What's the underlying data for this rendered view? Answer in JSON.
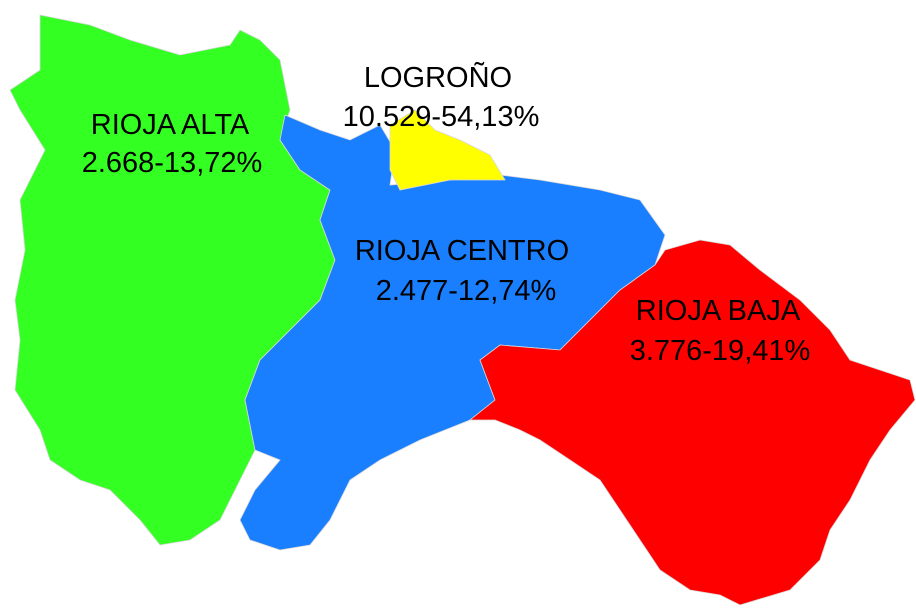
{
  "regions": [
    {
      "name": "RIOJA ALTA",
      "label": "2.668-13,72%",
      "color": "#33ff22"
    },
    {
      "name": "RIOJA CENTRO",
      "label": "2.477-12,74%",
      "color": "#1a7fff"
    },
    {
      "name": "LOGROÑO",
      "label": "10.529-54,13%",
      "color": "#ffff00"
    },
    {
      "name": "RIOJA BAJA",
      "label": "3.776-19,41%",
      "color": "#ff0000"
    }
  ]
}
